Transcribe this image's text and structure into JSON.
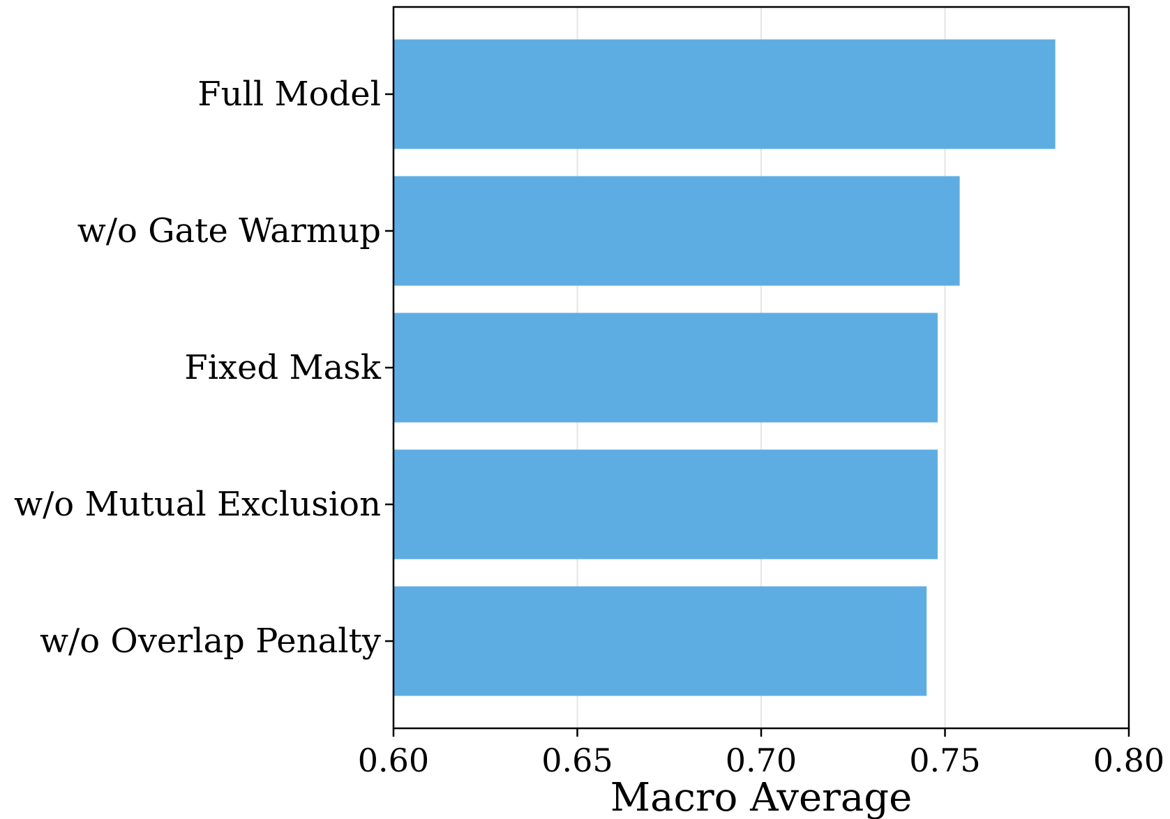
{
  "chart_data": {
    "type": "bar",
    "orientation": "horizontal",
    "title": "",
    "xlabel": "Macro Average",
    "ylabel": "",
    "categories": [
      "Full Model",
      "w/o Gate Warmup",
      "Fixed Mask",
      "w/o Mutual Exclusion",
      "w/o Overlap Penalty"
    ],
    "values": [
      0.78,
      0.754,
      0.748,
      0.748,
      0.745
    ],
    "xlim": [
      0.6,
      0.8
    ],
    "xticks": [
      "0.60",
      "0.65",
      "0.70",
      "0.75",
      "0.80"
    ],
    "grid": "vertical",
    "bar_color": "#5DADE2",
    "grid_color": "#e5e5e5"
  }
}
